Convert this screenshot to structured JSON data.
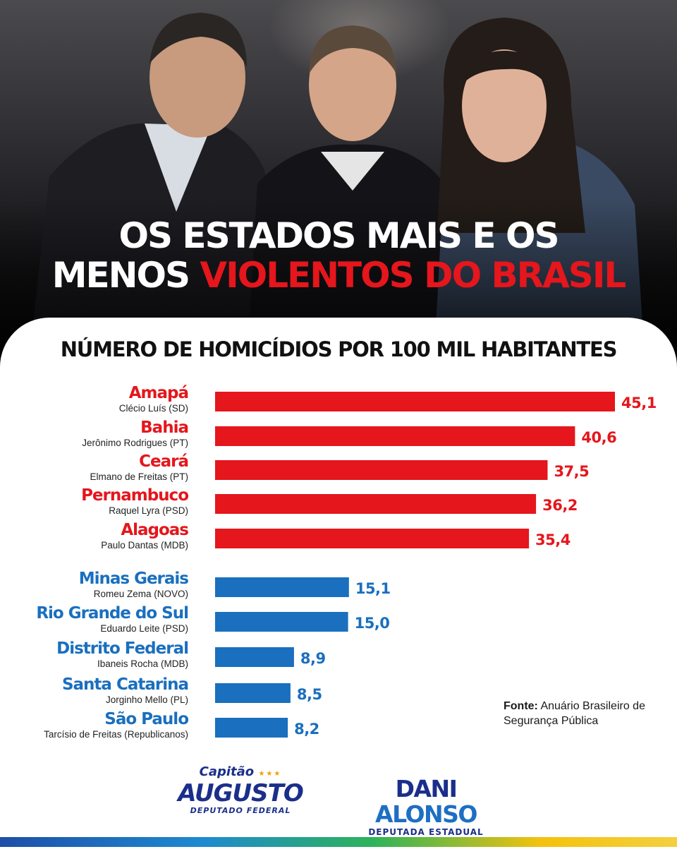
{
  "headline": {
    "line1": "OS ESTADOS MAIS E OS",
    "line2_white": "MENOS",
    "line2_red": "VIOLENTOS DO BRASIL"
  },
  "chart_data": {
    "type": "bar",
    "orientation": "horizontal",
    "title": "NÚMERO DE HOMICÍDIOS POR 100 MIL HABITANTES",
    "categories": [
      "Amapá",
      "Bahia",
      "Ceará",
      "Pernambuco",
      "Alagoas",
      "Minas Gerais",
      "Rio Grande do Sul",
      "Distrito Federal",
      "Santa Catarina",
      "São Paulo"
    ],
    "governors": [
      "Clécio Luís (SD)",
      "Jerônimo Rodrigues (PT)",
      "Elmano de Freitas (PT)",
      "Raquel Lyra (PSD)",
      "Paulo Dantas (MDB)",
      "Romeu Zema (NOVO)",
      "Eduardo Leite (PSD)",
      "Ibaneis Rocha (MDB)",
      "Jorginho Mello (PL)",
      "Tarcísio de Freitas (Republicanos)"
    ],
    "values": [
      45.1,
      40.6,
      37.5,
      36.2,
      35.4,
      15.1,
      15.0,
      8.9,
      8.5,
      8.2
    ],
    "value_labels": [
      "45,1",
      "40,6",
      "37,5",
      "36,2",
      "35,4",
      "15,1",
      "15,0",
      "8,9",
      "8,5",
      "8,2"
    ],
    "groups": [
      "most",
      "most",
      "most",
      "most",
      "most",
      "least",
      "least",
      "least",
      "least",
      "least"
    ],
    "colors": {
      "most": "#e5161c",
      "least": "#1a6fbe"
    },
    "xlim": [
      0,
      45.1
    ],
    "grid": false,
    "legend": "none"
  },
  "source": {
    "label": "Fonte:",
    "text": "Anuário Brasileiro de Segurança Pública"
  },
  "logos": {
    "left": {
      "line1": "Capitão",
      "line2": "AUGUSTO",
      "line3": "DEPUTADO FEDERAL"
    },
    "right": {
      "first": "DANI",
      "last": "ALONSO",
      "line2": "DEPUTADA ESTADUAL"
    }
  }
}
